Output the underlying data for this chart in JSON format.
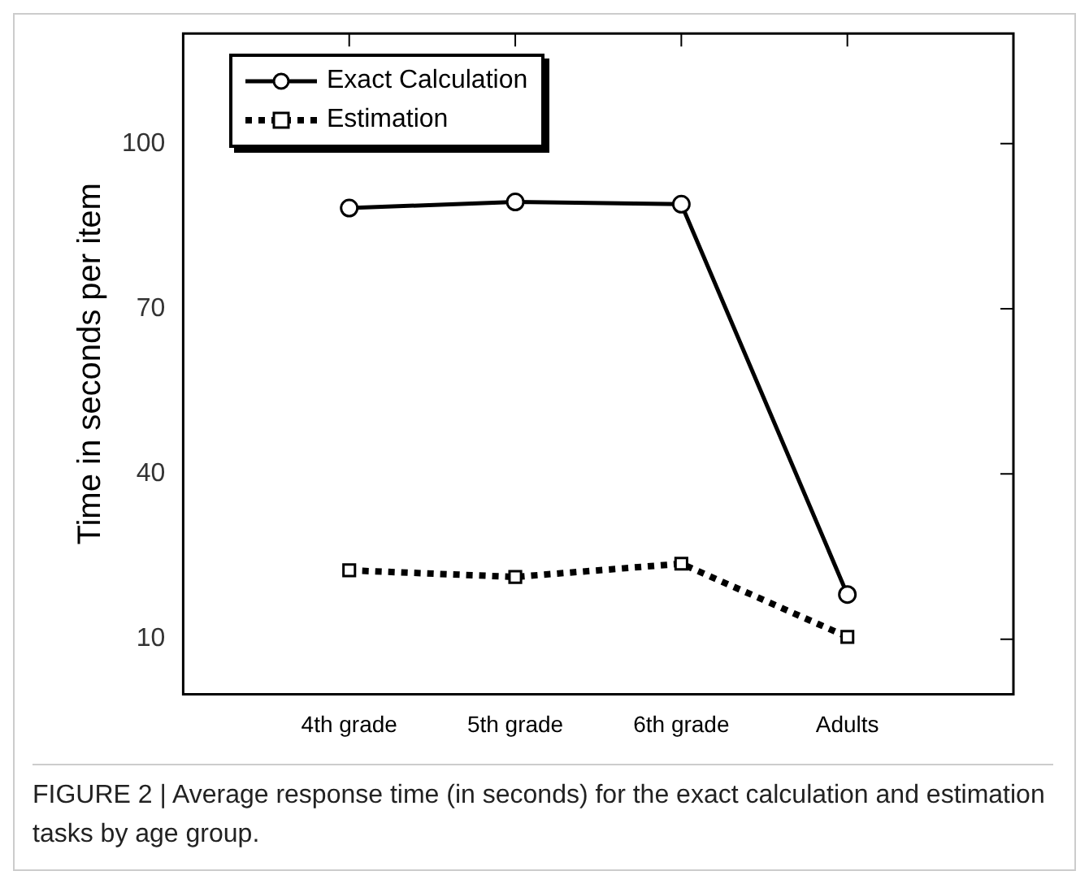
{
  "chart_data": {
    "type": "line",
    "categories": [
      "4th grade",
      "5th grade",
      "6th grade",
      "Adults"
    ],
    "ylabel": "Time in seconds per item",
    "ylim": [
      0,
      120
    ],
    "yticks": [
      10,
      40,
      70,
      100
    ],
    "grid": false,
    "legend": "top left",
    "series": [
      {
        "name": "Exact Calculation",
        "color": "#000000",
        "values": [
          88.3,
          89.4,
          89.0,
          18.1
        ],
        "marker": "circle",
        "line_style": "solid"
      },
      {
        "name": "Estimation",
        "color": "#000000",
        "values": [
          22.5,
          21.3,
          23.7,
          10.4
        ],
        "marker": "square",
        "line_style": "dotted"
      }
    ],
    "annotations": [
      "FIGURE 2 | Average response time (in seconds) for the exact calculation and estimation tasks by age group."
    ]
  }
}
